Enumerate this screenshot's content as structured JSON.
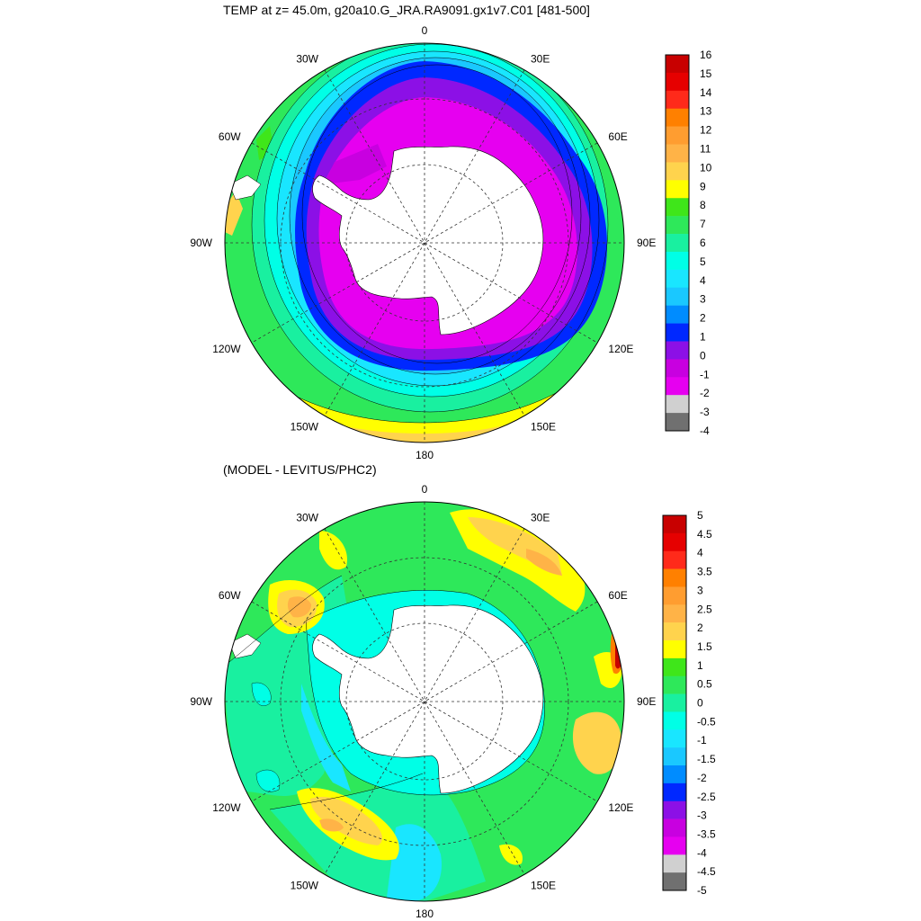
{
  "panels": [
    {
      "title": "TEMP at z=  45.0m, g20a10.G_JRA.RA9091.gx1v7.C01 [481-500]",
      "longitude_labels": [
        "0",
        "30E",
        "60E",
        "90E",
        "120E",
        "150E",
        "180",
        "150W",
        "120W",
        "90W",
        "60W",
        "30W"
      ],
      "colorbar": {
        "labels": [
          "16",
          "15",
          "14",
          "13",
          "12",
          "11",
          "10",
          "9",
          "8",
          "7",
          "6",
          "5",
          "4",
          "3",
          "2",
          "1",
          "0",
          "-1",
          "-2",
          "-3",
          "-4"
        ],
        "colors": [
          "#c80000",
          "#e60000",
          "#ff2a1a",
          "#ff8000",
          "#ff9d30",
          "#ffb347",
          "#ffd34d",
          "#ffff00",
          "#3fe61a",
          "#2ee85a",
          "#19f0a0",
          "#00ffe6",
          "#19e6ff",
          "#1ac8ff",
          "#008cff",
          "#0028ff",
          "#8c10e6",
          "#c800e0",
          "#e600f0",
          "#d0d0d0",
          "#707070"
        ]
      }
    },
    {
      "title": "(MODEL - LEVITUS/PHC2)",
      "longitude_labels": [
        "0",
        "30E",
        "60E",
        "90E",
        "120E",
        "150E",
        "180",
        "150W",
        "120W",
        "90W",
        "60W",
        "30W"
      ],
      "colorbar": {
        "labels": [
          "5",
          "4.5",
          "4",
          "3.5",
          "3",
          "2.5",
          "2",
          "1.5",
          "1",
          "0.5",
          "0",
          "-0.5",
          "-1",
          "-1.5",
          "-2",
          "-2.5",
          "-3",
          "-3.5",
          "-4",
          "-4.5",
          "-5"
        ],
        "colors": [
          "#c80000",
          "#e60000",
          "#ff2a1a",
          "#ff8000",
          "#ff9d30",
          "#ffb347",
          "#ffd34d",
          "#ffff00",
          "#3fe61a",
          "#2ee85a",
          "#19f0a0",
          "#00ffe6",
          "#19e6ff",
          "#1ac8ff",
          "#008cff",
          "#0028ff",
          "#8c10e6",
          "#c800e0",
          "#e600f0",
          "#d0d0d0",
          "#707070"
        ]
      }
    }
  ]
}
